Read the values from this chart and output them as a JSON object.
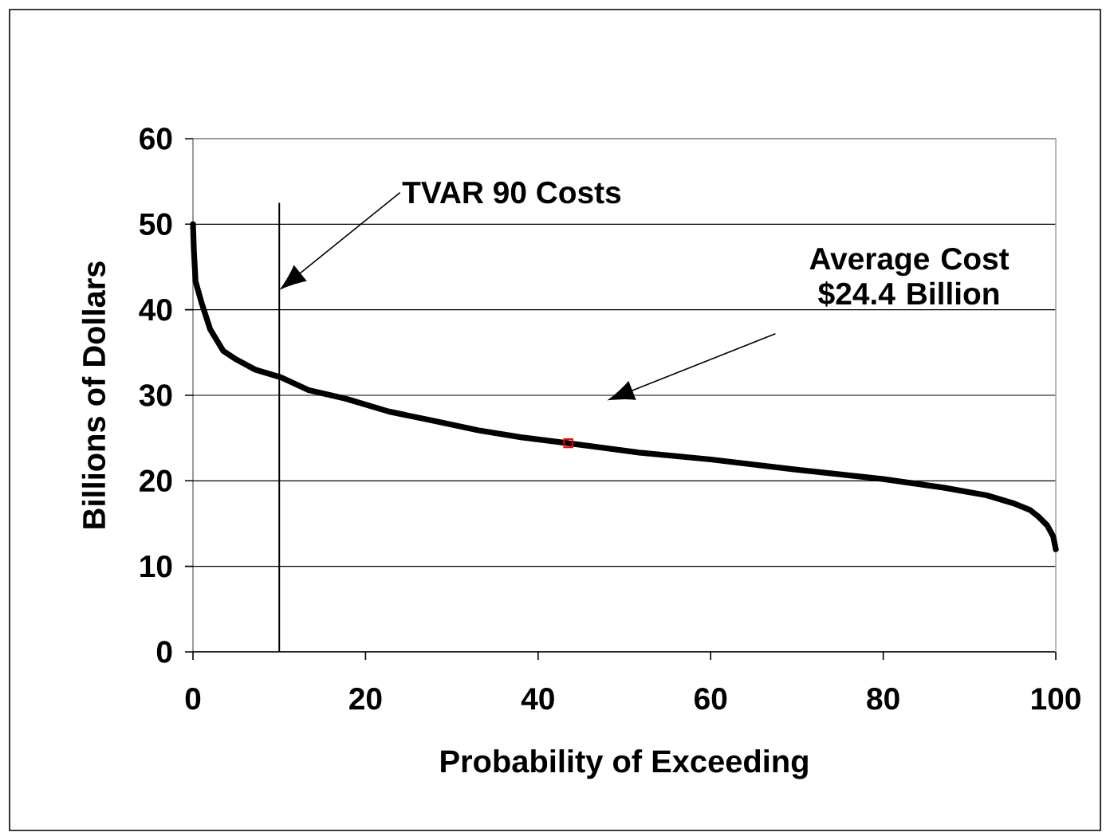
{
  "chart_data": {
    "type": "line",
    "xlabel": "Probability of Exceeding",
    "ylabel": "Billions of Dollars",
    "xlim": [
      0,
      100
    ],
    "xticks": [
      0,
      20,
      40,
      60,
      80,
      100
    ],
    "ylim": [
      0,
      60
    ],
    "yticks": [
      0,
      10,
      20,
      30,
      40,
      50,
      60
    ],
    "grid": "y",
    "series": [
      {
        "color": "#000000",
        "marker": "none",
        "x": [
          0,
          0.1,
          0.3,
          1,
          2,
          3.5,
          5,
          7.2,
          10.2,
          13.4,
          17.7,
          22.7,
          28,
          33.1,
          38,
          43.5,
          51.7,
          60,
          70,
          80,
          87,
          92,
          95,
          97,
          98,
          99,
          99.7,
          100
        ],
        "values": [
          50,
          47,
          43.3,
          40.8,
          37.7,
          35.2,
          34.2,
          33,
          32.1,
          30.6,
          29.6,
          28.1,
          27,
          25.9,
          25.1,
          24.4,
          23.3,
          22.5,
          21.3,
          20.2,
          19.2,
          18.3,
          17.4,
          16.6,
          15.8,
          14.8,
          13.5,
          12
        ]
      },
      {
        "type": "scatter",
        "color": "#ff0000",
        "marker": "square",
        "x": [
          43.5
        ],
        "values": [
          24.4
        ]
      }
    ],
    "ref_lines": [
      {
        "axis": "x",
        "value": 10,
        "label": "TVAR 90 Costs",
        "color": "#000000"
      }
    ],
    "annotations": [
      "Average Cost $24.4 Billion"
    ]
  }
}
